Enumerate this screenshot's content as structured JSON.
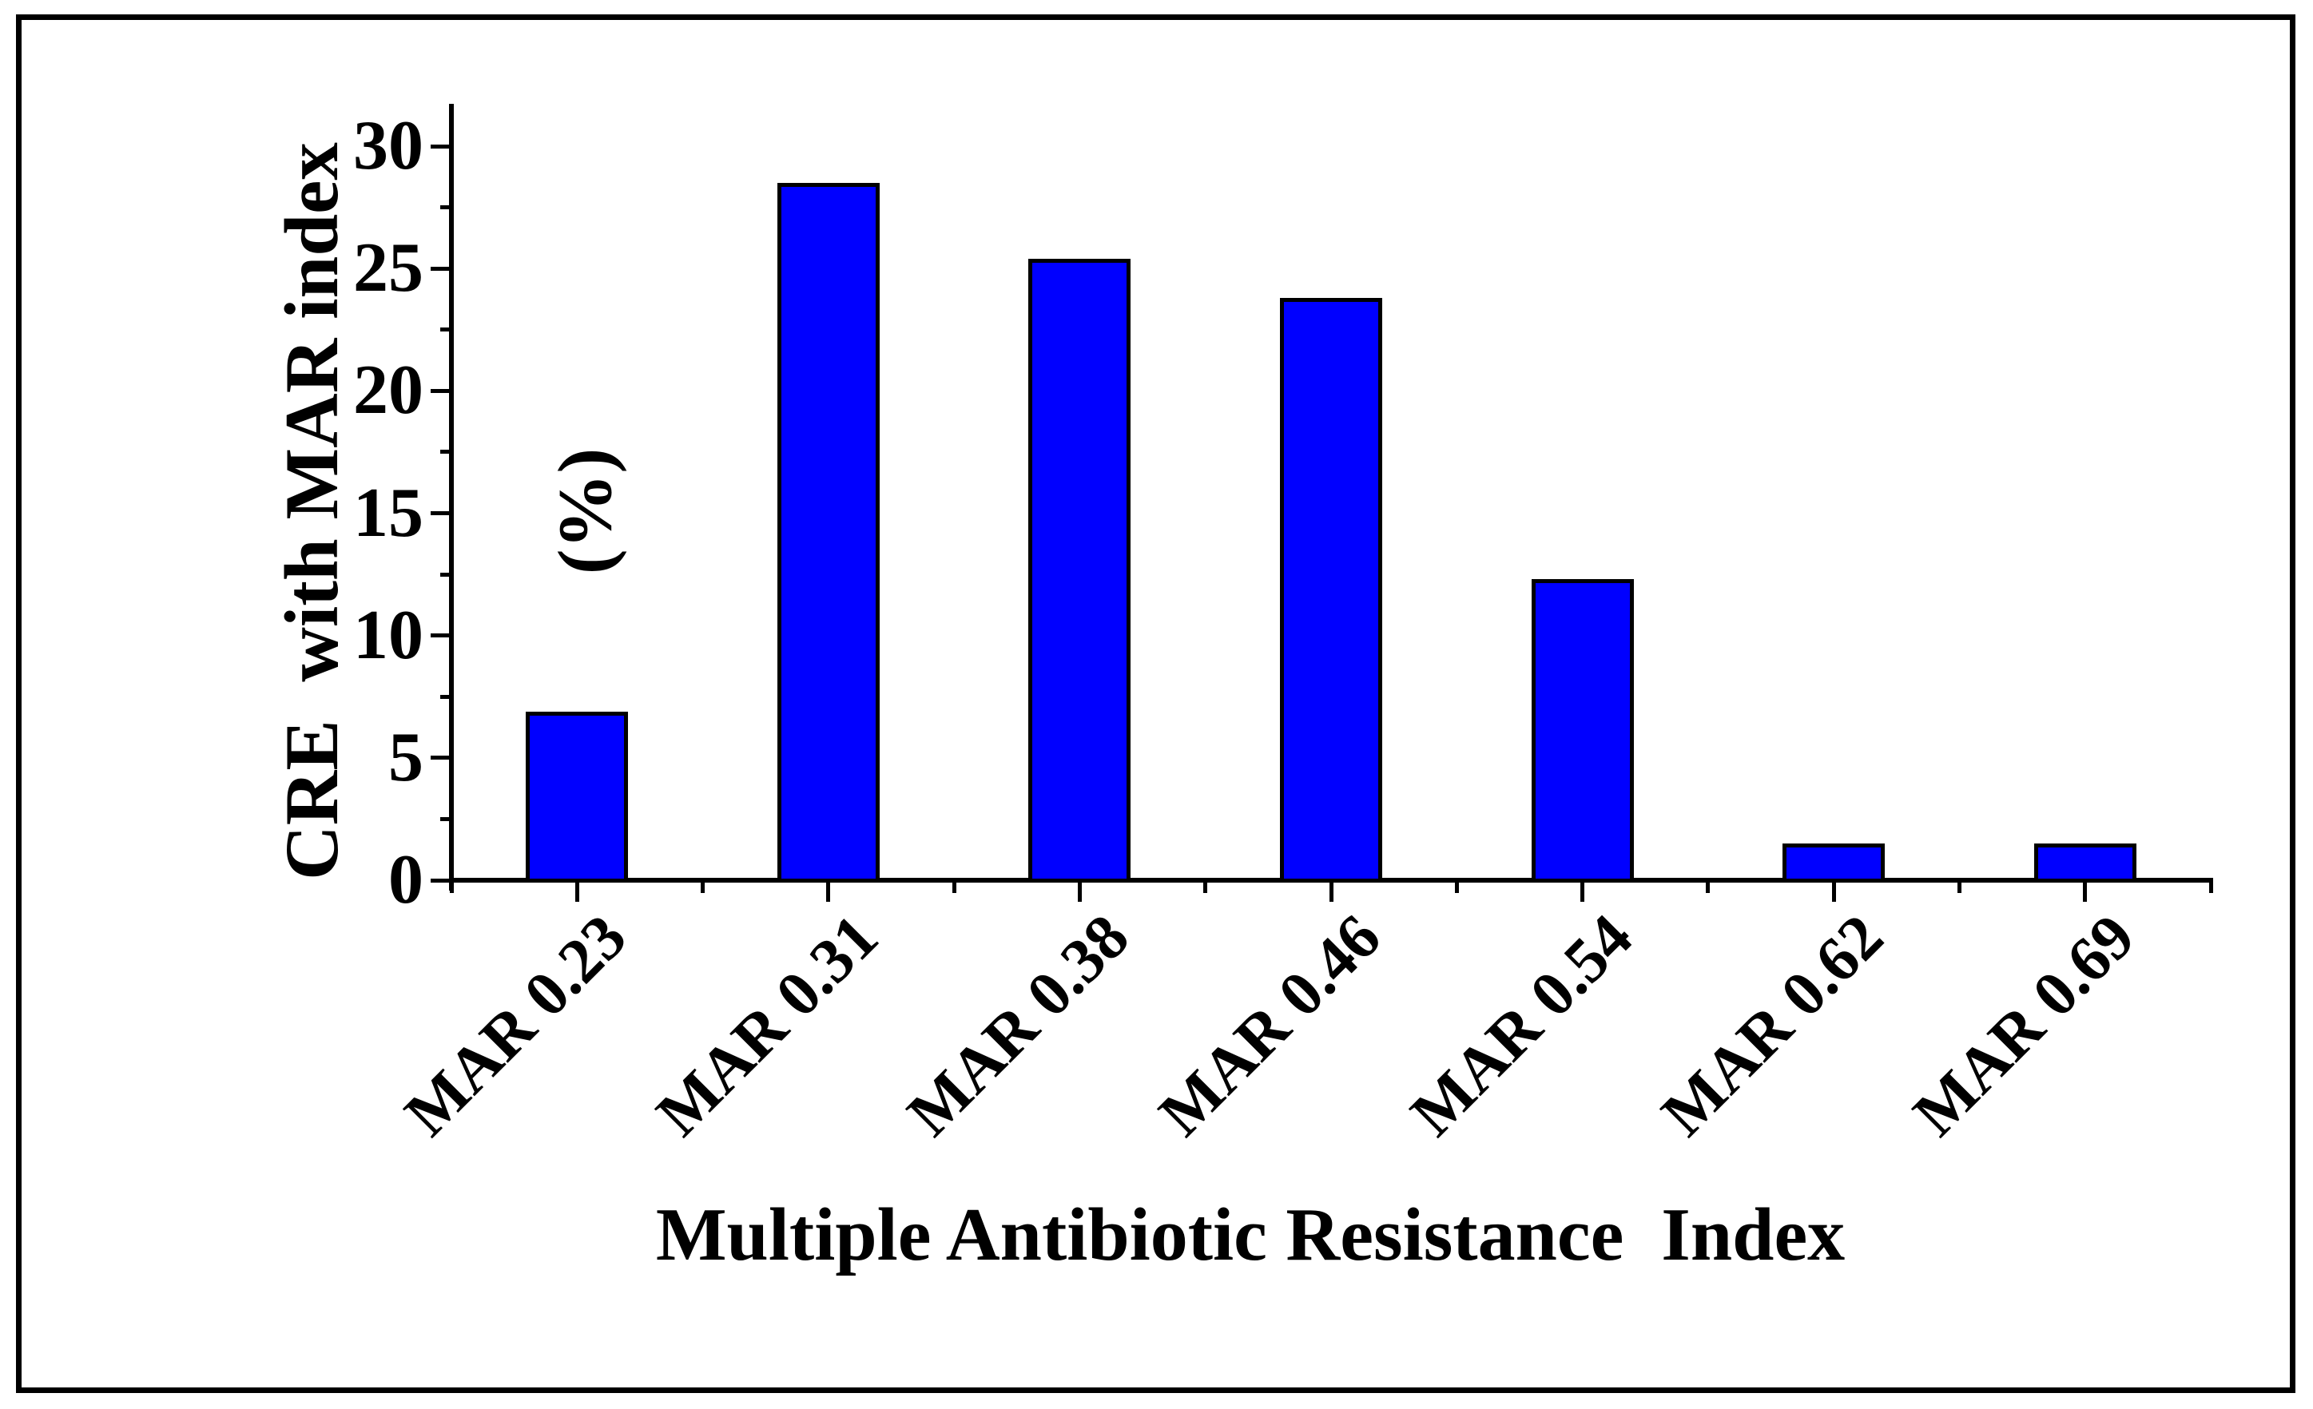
{
  "figure": {
    "background_color": "#ffffff",
    "frame_color": "#000000"
  },
  "chart_data": {
    "type": "bar",
    "title": "",
    "xlabel": "Multiple Antibiotic Resistance  Index",
    "ylabel": "CRE with MAR index (%)",
    "ylabel_lines": [
      "CRE  with MAR index",
      "(%)"
    ],
    "categories": [
      "MAR 0.23",
      "MAR 0.31",
      "MAR 0.38",
      "MAR 0.46",
      "MAR 0.54",
      "MAR 0.62",
      "MAR 0.69"
    ],
    "values": [
      6.9,
      28.5,
      25.4,
      23.8,
      12.3,
      1.5,
      1.5
    ],
    "ylim": [
      0,
      30
    ],
    "y_major_ticks": [
      0,
      5,
      10,
      15,
      20,
      25,
      30
    ],
    "y_minor_step": 2.5,
    "grid": false,
    "legend": null,
    "bar_color": "#0000ff",
    "bar_border_color": "#000000",
    "axis_color": "#000000",
    "text_color": "#000000"
  }
}
